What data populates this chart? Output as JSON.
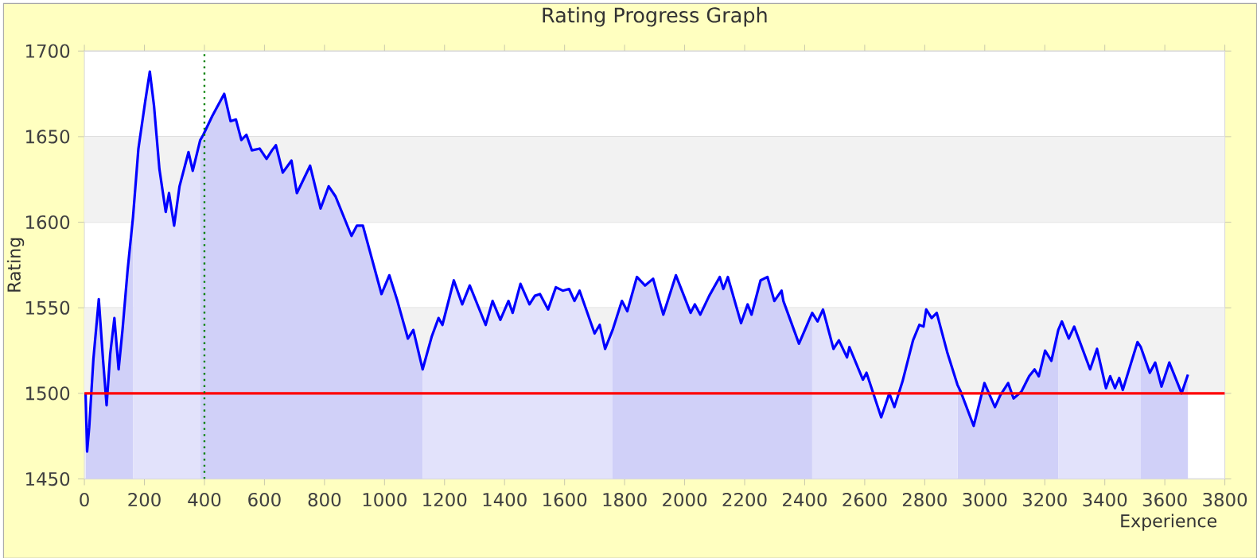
{
  "chart_data": {
    "type": "line",
    "title": "Rating Progress Graph",
    "xlabel": "Experience",
    "ylabel": "Rating",
    "xlim": [
      0,
      3800
    ],
    "xticks": [
      0,
      200,
      400,
      600,
      800,
      1000,
      1200,
      1400,
      1600,
      1800,
      2000,
      2200,
      2400,
      2600,
      2800,
      3000,
      3200,
      3400,
      3600,
      3800
    ],
    "ylim": [
      1450,
      1700
    ],
    "yticks": [
      1450,
      1500,
      1550,
      1600,
      1650,
      1700
    ],
    "grid": "y",
    "marker": "none",
    "line_style": "solid",
    "bands": [
      {
        "axis": "y",
        "from": 1500,
        "to": 1550,
        "color": "#f2f2f2"
      },
      {
        "axis": "y",
        "from": 1600,
        "to": 1650,
        "color": "#f2f2f2"
      }
    ],
    "ref_lines": [
      {
        "axis": "y",
        "value": 1500,
        "color": "#ff0000",
        "line_style": "solid"
      },
      {
        "axis": "x",
        "value": 400,
        "color": "#008000",
        "line_style": "dotted"
      }
    ],
    "series": [
      {
        "type": "area",
        "color": "#d0d0f8",
        "x": [
          4,
          9,
          16,
          30,
          48,
          62,
          74,
          86,
          100,
          114,
          127,
          144,
          162
        ],
        "values": [
          1500,
          1466,
          1480,
          1520,
          1555,
          1520,
          1493,
          1523,
          1544,
          1514,
          1537,
          1572,
          1603
        ]
      },
      {
        "type": "area",
        "color": "#e2e2fb",
        "x": [
          162,
          180,
          203,
          218,
          232,
          250,
          271,
          282,
          299,
          317,
          347,
          361,
          386
        ],
        "values": [
          1603,
          1643,
          1671,
          1688,
          1668,
          1631,
          1606,
          1617,
          1598,
          1621,
          1641,
          1630,
          1648
        ]
      },
      {
        "type": "area",
        "color": "#d0d0f8",
        "x": [
          386,
          396,
          426,
          466,
          487,
          505,
          523,
          540,
          558,
          584,
          607,
          625,
          638,
          661,
          690,
          708,
          752,
          787,
          814,
          837,
          890,
          908,
          928,
          990,
          1016,
          1043,
          1078,
          1096,
          1127
        ],
        "values": [
          1648,
          1651,
          1662,
          1675,
          1659,
          1660,
          1648,
          1651,
          1642,
          1643,
          1637,
          1642,
          1645,
          1629,
          1636,
          1617,
          1633,
          1608,
          1621,
          1615,
          1592,
          1598,
          1598,
          1558,
          1569,
          1554,
          1532,
          1537,
          1514
        ]
      },
      {
        "type": "area",
        "color": "#e2e2fb",
        "x": [
          1127,
          1157,
          1180,
          1193,
          1231,
          1259,
          1284,
          1337,
          1360,
          1386,
          1413,
          1427,
          1453,
          1483,
          1501,
          1518,
          1545,
          1571,
          1594,
          1615,
          1633,
          1650,
          1700,
          1717,
          1735,
          1760
        ],
        "values": [
          1514,
          1533,
          1544,
          1540,
          1566,
          1552,
          1563,
          1540,
          1554,
          1543,
          1554,
          1547,
          1564,
          1552,
          1557,
          1558,
          1549,
          1562,
          1560,
          1561,
          1554,
          1560,
          1535,
          1540,
          1526,
          1537
        ]
      },
      {
        "type": "area",
        "color": "#d0d0f8",
        "x": [
          1760,
          1791,
          1809,
          1841,
          1868,
          1895,
          1929,
          1971,
          2020,
          2034,
          2052,
          2082,
          2117,
          2129,
          2144,
          2188,
          2210,
          2223,
          2253,
          2276,
          2299,
          2323,
          2329,
          2381,
          2425
        ],
        "values": [
          1537,
          1554,
          1548,
          1568,
          1563,
          1567,
          1546,
          1569,
          1547,
          1552,
          1546,
          1557,
          1568,
          1561,
          1568,
          1541,
          1552,
          1546,
          1566,
          1568,
          1554,
          1560,
          1554,
          1529,
          1547
        ]
      },
      {
        "type": "area",
        "color": "#e2e2fb",
        "x": [
          2425,
          2443,
          2461,
          2496,
          2514,
          2541,
          2549,
          2594,
          2606,
          2655,
          2682,
          2699,
          2726,
          2761,
          2782,
          2796,
          2805,
          2823,
          2840,
          2875,
          2909
        ],
        "values": [
          1547,
          1542,
          1549,
          1526,
          1531,
          1521,
          1527,
          1508,
          1512,
          1486,
          1500,
          1492,
          1507,
          1531,
          1540,
          1539,
          1549,
          1544,
          1547,
          1524,
          1505
        ]
      },
      {
        "type": "area",
        "color": "#d0d0f8",
        "x": [
          2909,
          2920,
          2963,
          2999,
          3034,
          3052,
          3078,
          3096,
          3122,
          3148,
          3166,
          3180,
          3201,
          3222,
          3245
        ],
        "values": [
          1505,
          1501,
          1481,
          1506,
          1492,
          1499,
          1506,
          1497,
          1501,
          1510,
          1514,
          1510,
          1525,
          1519,
          1537
        ]
      },
      {
        "type": "area",
        "color": "#e2e2fb",
        "x": [
          3245,
          3257,
          3280,
          3298,
          3351,
          3374,
          3404,
          3418,
          3434,
          3448,
          3460,
          3509,
          3520
        ],
        "values": [
          1537,
          1542,
          1532,
          1539,
          1514,
          1526,
          1503,
          1510,
          1503,
          1509,
          1502,
          1530,
          1527
        ]
      },
      {
        "type": "area",
        "color": "#d0d0f8",
        "x": [
          3520,
          3550,
          3568,
          3589,
          3615,
          3656,
          3677
        ],
        "values": [
          1527,
          1512,
          1518,
          1504,
          1518,
          1500,
          1511
        ]
      },
      {
        "color": "#0000ff",
        "x": [
          4,
          9,
          16,
          30,
          48,
          62,
          74,
          86,
          100,
          114,
          127,
          144,
          162,
          180,
          203,
          218,
          232,
          250,
          271,
          282,
          299,
          317,
          347,
          361,
          386,
          396,
          426,
          466,
          487,
          505,
          523,
          540,
          558,
          584,
          607,
          625,
          638,
          661,
          690,
          708,
          752,
          787,
          814,
          837,
          890,
          908,
          928,
          990,
          1016,
          1043,
          1078,
          1096,
          1127,
          1157,
          1180,
          1193,
          1231,
          1259,
          1284,
          1337,
          1360,
          1386,
          1413,
          1427,
          1453,
          1483,
          1501,
          1518,
          1545,
          1571,
          1594,
          1615,
          1633,
          1650,
          1700,
          1717,
          1735,
          1760,
          1791,
          1809,
          1841,
          1868,
          1895,
          1929,
          1971,
          2020,
          2034,
          2052,
          2082,
          2117,
          2129,
          2144,
          2188,
          2210,
          2223,
          2253,
          2276,
          2299,
          2323,
          2329,
          2381,
          2425,
          2443,
          2461,
          2496,
          2514,
          2541,
          2549,
          2594,
          2606,
          2655,
          2682,
          2699,
          2726,
          2761,
          2782,
          2796,
          2805,
          2823,
          2840,
          2875,
          2909,
          2920,
          2963,
          2999,
          3034,
          3052,
          3078,
          3096,
          3122,
          3148,
          3166,
          3180,
          3201,
          3222,
          3245,
          3257,
          3280,
          3298,
          3351,
          3374,
          3404,
          3418,
          3434,
          3448,
          3460,
          3509,
          3520,
          3550,
          3568,
          3589,
          3615,
          3656,
          3677
        ],
        "values": [
          1500,
          1466,
          1480,
          1520,
          1555,
          1520,
          1493,
          1523,
          1544,
          1514,
          1537,
          1572,
          1603,
          1643,
          1671,
          1688,
          1668,
          1631,
          1606,
          1617,
          1598,
          1621,
          1641,
          1630,
          1648,
          1651,
          1662,
          1675,
          1659,
          1660,
          1648,
          1651,
          1642,
          1643,
          1637,
          1642,
          1645,
          1629,
          1636,
          1617,
          1633,
          1608,
          1621,
          1615,
          1592,
          1598,
          1598,
          1558,
          1569,
          1554,
          1532,
          1537,
          1514,
          1533,
          1544,
          1540,
          1566,
          1552,
          1563,
          1540,
          1554,
          1543,
          1554,
          1547,
          1564,
          1552,
          1557,
          1558,
          1549,
          1562,
          1560,
          1561,
          1554,
          1560,
          1535,
          1540,
          1526,
          1537,
          1554,
          1548,
          1568,
          1563,
          1567,
          1546,
          1569,
          1547,
          1552,
          1546,
          1557,
          1568,
          1561,
          1568,
          1541,
          1552,
          1546,
          1566,
          1568,
          1554,
          1560,
          1554,
          1529,
          1547,
          1542,
          1549,
          1526,
          1531,
          1521,
          1527,
          1508,
          1512,
          1486,
          1500,
          1492,
          1507,
          1531,
          1540,
          1539,
          1549,
          1544,
          1547,
          1524,
          1505,
          1501,
          1481,
          1506,
          1492,
          1499,
          1506,
          1497,
          1501,
          1510,
          1514,
          1510,
          1525,
          1519,
          1537,
          1542,
          1532,
          1539,
          1514,
          1526,
          1503,
          1510,
          1503,
          1509,
          1502,
          1530,
          1527,
          1512,
          1518,
          1504,
          1518,
          1500,
          1511
        ]
      }
    ]
  }
}
